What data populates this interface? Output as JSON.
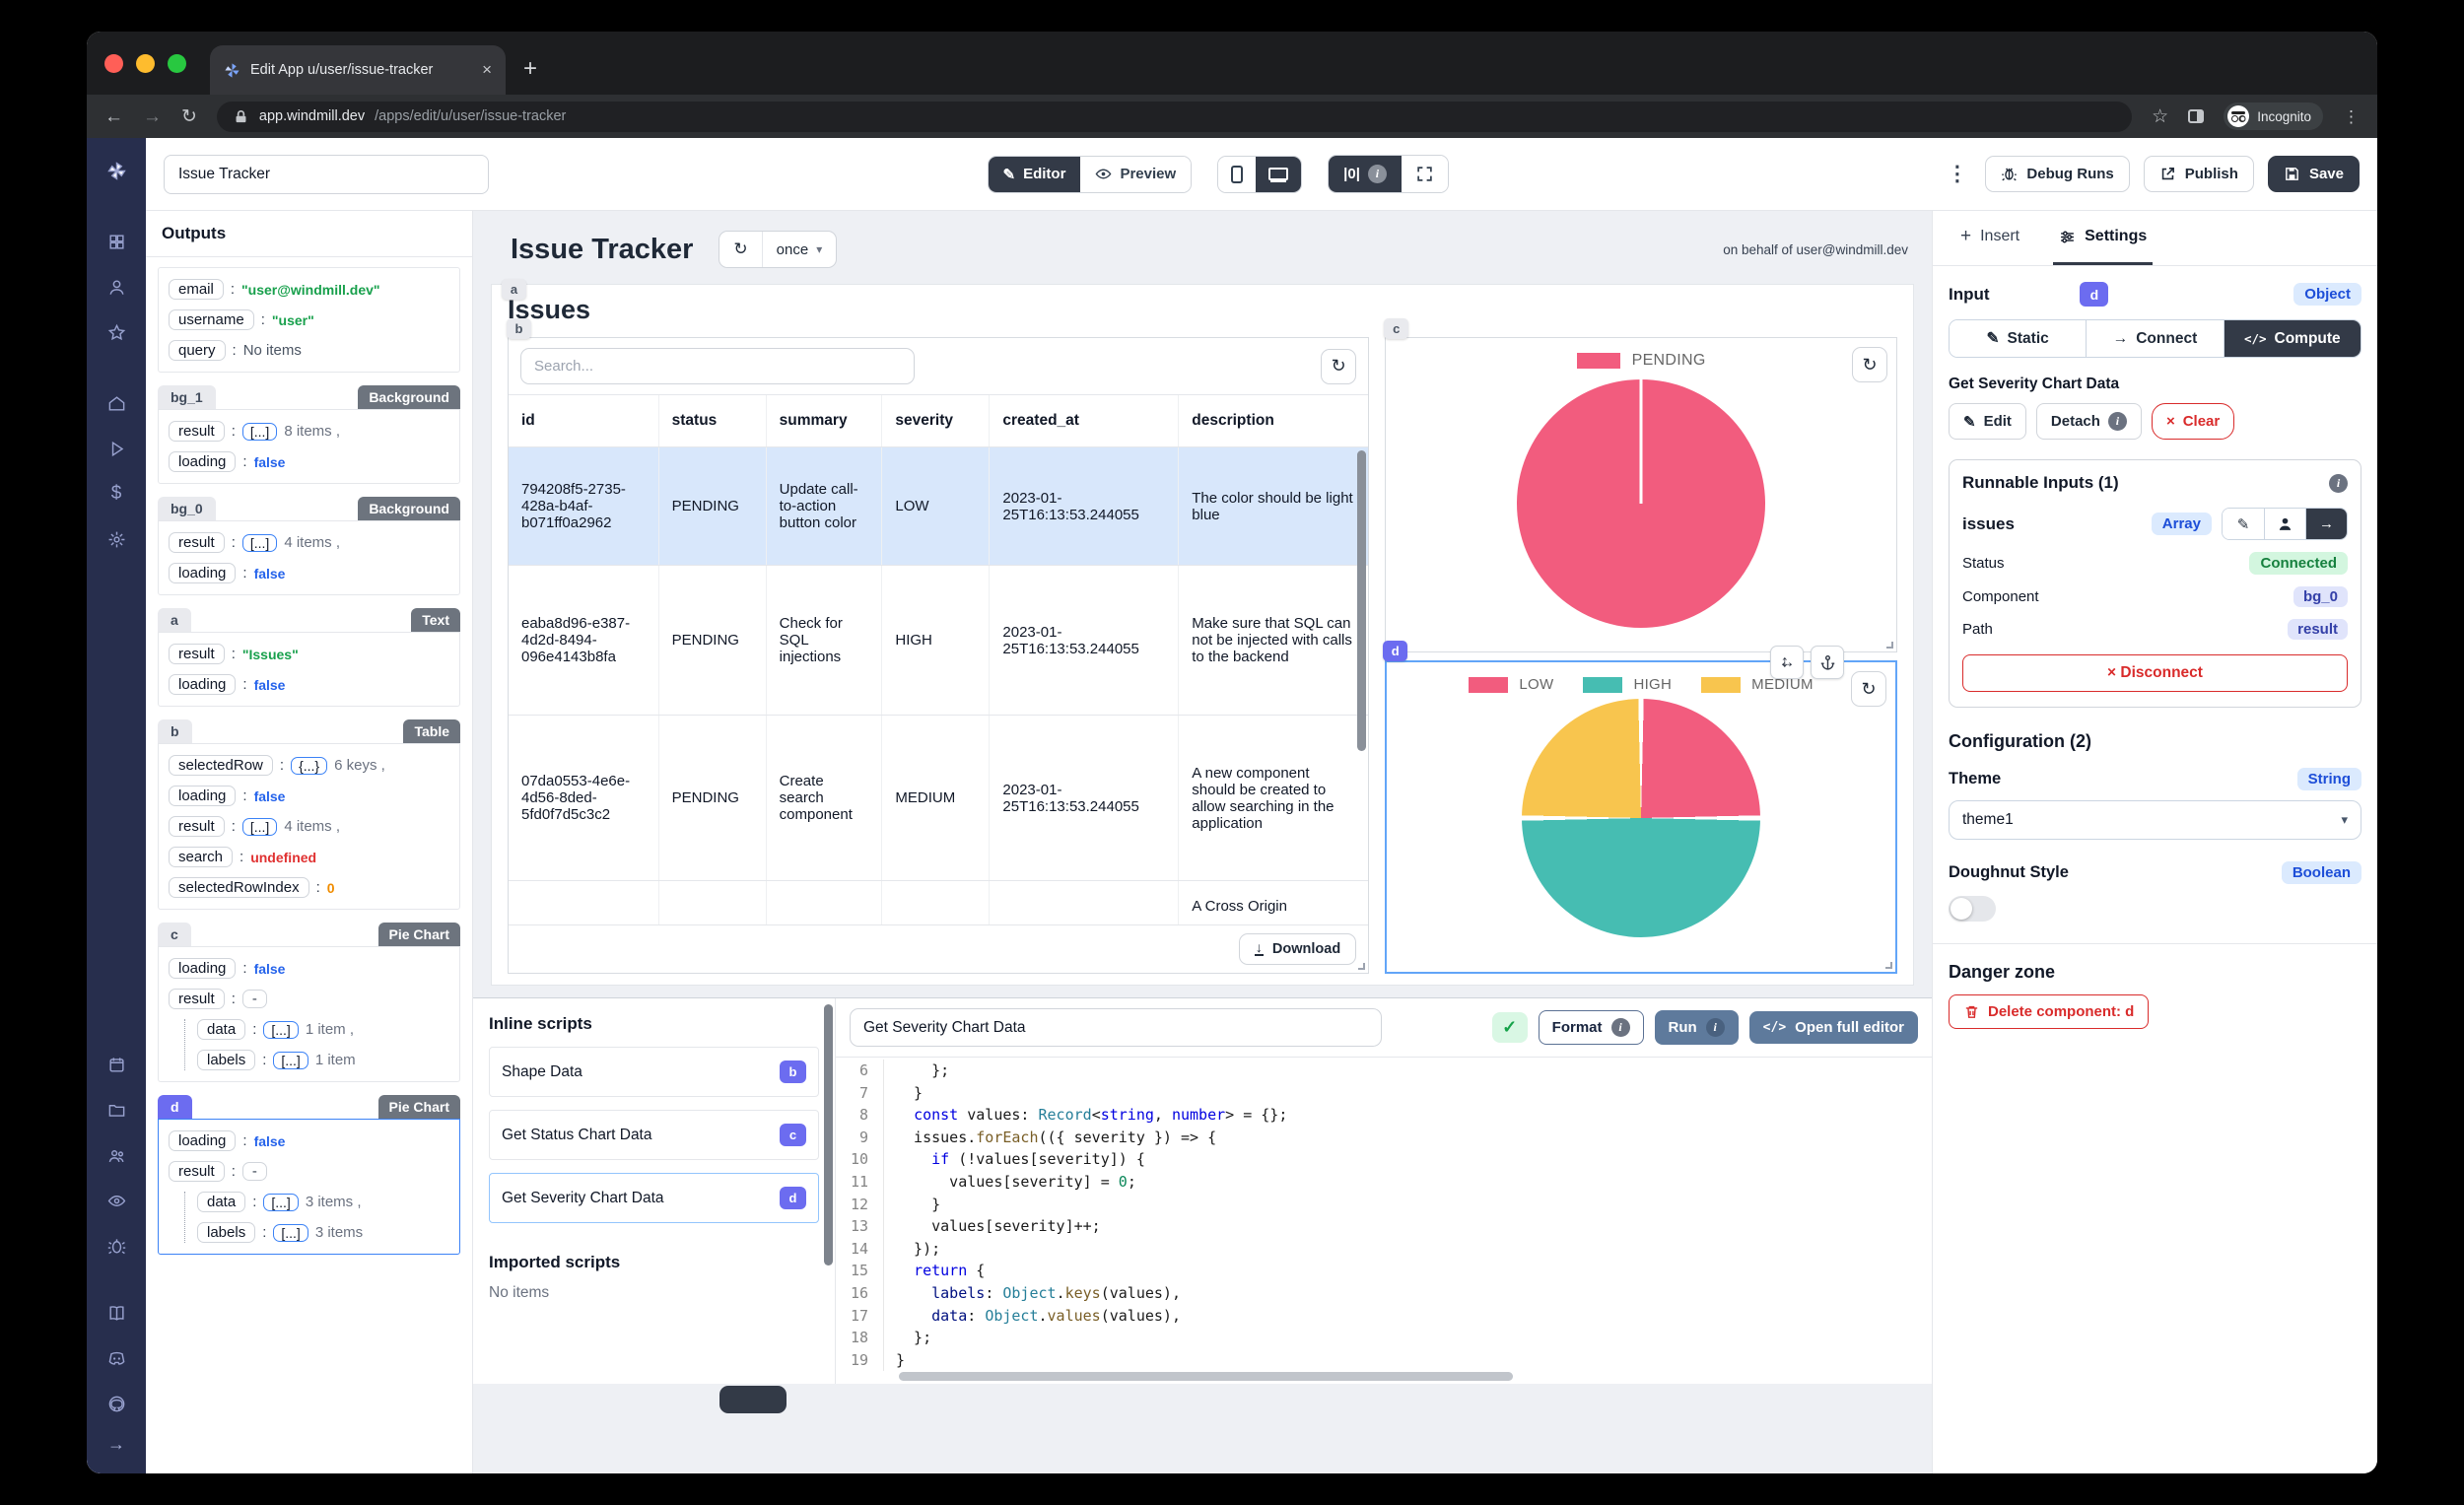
{
  "browser": {
    "tab_title": "Edit App u/user/issue-tracker",
    "url_host": "app.windmill.dev",
    "url_path": "/apps/edit/u/user/issue-tracker",
    "incognito": "Incognito"
  },
  "toolbar": {
    "app_name": "Issue Tracker",
    "editor": "Editor",
    "preview": "Preview",
    "zero": "|0|",
    "debug_runs": "Debug Runs",
    "publish": "Publish",
    "save": "Save"
  },
  "outputs": {
    "title": "Outputs",
    "context": {
      "email_key": "email",
      "email_val": "\"user@windmill.dev\"",
      "username_key": "username",
      "username_val": "\"user\"",
      "query_key": "query",
      "query_val": "No items"
    },
    "bg1": {
      "name": "bg_1",
      "type": "Background",
      "result_key": "result",
      "result_items": "8 items ,",
      "loading_key": "loading",
      "loading_val": "false"
    },
    "bg0": {
      "name": "bg_0",
      "type": "Background",
      "result_key": "result",
      "result_items": "4 items ,",
      "loading_key": "loading",
      "loading_val": "false"
    },
    "a": {
      "name": "a",
      "type": "Text",
      "result_key": "result",
      "result_val": "\"Issues\"",
      "loading_key": "loading",
      "loading_val": "false"
    },
    "b": {
      "name": "b",
      "type": "Table",
      "selectedRow_key": "selectedRow",
      "selectedRow_items": "6 keys ,",
      "loading_key": "loading",
      "loading_val": "false",
      "result_key": "result",
      "result_items": "4 items ,",
      "search_key": "search",
      "search_val": "undefined",
      "sri_key": "selectedRowIndex",
      "sri_val": "0"
    },
    "c": {
      "name": "c",
      "type": "Pie Chart",
      "loading_key": "loading",
      "loading_val": "false",
      "result_key": "result",
      "result_val": "-",
      "data_key": "data",
      "data_items": "1 item ,",
      "labels_key": "labels",
      "labels_items": "1 item"
    },
    "d": {
      "name": "d",
      "type": "Pie Chart",
      "loading_key": "loading",
      "loading_val": "false",
      "result_key": "result",
      "result_val": "-",
      "data_key": "data",
      "data_items": "3 items ,",
      "labels_key": "labels",
      "labels_items": "3 items"
    }
  },
  "canvas": {
    "title": "Issue Tracker",
    "mode": "once",
    "behalf": "on behalf of user@windmill.dev",
    "app_title": "Issues",
    "badge_a": "a",
    "badge_b": "b",
    "badge_c": "c",
    "badge_d": "d"
  },
  "table": {
    "search_placeholder": "Search...",
    "columns": {
      "id": "id",
      "status": "status",
      "summary": "summary",
      "severity": "severity",
      "created_at": "created_at",
      "description": "description"
    },
    "rows": [
      {
        "id": "794208f5-2735-428a-b4af-b071ff0a2962",
        "status": "PENDING",
        "summary": "Update call-to-action button color",
        "severity": "LOW",
        "created_at": "2023-01-25T16:13:53.244055",
        "description": "The color should be light blue"
      },
      {
        "id": "eaba8d96-e387-4d2d-8494-096e4143b8fa",
        "status": "PENDING",
        "summary": "Check for SQL injections",
        "severity": "HIGH",
        "created_at": "2023-01-25T16:13:53.244055",
        "description": "Make sure that SQL can not be injected with calls to the backend"
      },
      {
        "id": "07da0553-4e6e-4d56-8ded-5fd0f7d5c3c2",
        "status": "PENDING",
        "summary": "Create search component",
        "severity": "MEDIUM",
        "created_at": "2023-01-25T16:13:53.244055",
        "description": "A new component should be created to allow searching in the application"
      }
    ],
    "partial_description": "A Cross Origin",
    "download": "Download"
  },
  "chart_data": [
    {
      "type": "pie",
      "title": "Status pie (component c)",
      "labels": [
        "PENDING"
      ],
      "values_pct": [
        100
      ],
      "colors": [
        "#f25c7e"
      ],
      "legend_position": "top"
    },
    {
      "type": "pie",
      "title": "Severity pie (component d)",
      "labels": [
        "LOW",
        "HIGH",
        "MEDIUM"
      ],
      "values_pct": [
        25,
        50,
        25
      ],
      "colors": [
        "#f25c7e",
        "#46bdb2",
        "#f8c54e"
      ],
      "legend_position": "top"
    }
  ],
  "scripts": {
    "title": "Inline scripts",
    "items": [
      {
        "label": "Shape Data",
        "badge": "b"
      },
      {
        "label": "Get Status Chart Data",
        "badge": "c"
      },
      {
        "label": "Get Severity Chart Data",
        "badge": "d"
      }
    ],
    "imported_title": "Imported scripts",
    "imported_empty": "No items"
  },
  "editor": {
    "name": "Get Severity Chart Data",
    "format": "Format",
    "run": "Run",
    "open_full": "Open full editor",
    "code": [
      {
        "n": "6",
        "t": "    };"
      },
      {
        "n": "7",
        "t": "  }"
      },
      {
        "n": "8",
        "t": "  const values: Record<string, number> = {};"
      },
      {
        "n": "9",
        "t": "  issues.forEach(({ severity }) => {"
      },
      {
        "n": "10",
        "t": "    if (!values[severity]) {"
      },
      {
        "n": "11",
        "t": "      values[severity] = 0;"
      },
      {
        "n": "12",
        "t": "    }"
      },
      {
        "n": "13",
        "t": "    values[severity]++;"
      },
      {
        "n": "14",
        "t": "  });"
      },
      {
        "n": "15",
        "t": "  return {"
      },
      {
        "n": "16",
        "t": "    labels: Object.keys(values),"
      },
      {
        "n": "17",
        "t": "    data: Object.values(values),"
      },
      {
        "n": "18",
        "t": "  };"
      },
      {
        "n": "19",
        "t": "}"
      }
    ]
  },
  "panel": {
    "insert": "Insert",
    "settings": "Settings",
    "input_label": "Input",
    "input_badge": "d",
    "input_type": "Object",
    "static": "Static",
    "connect": "Connect",
    "compute": "Compute",
    "script_title": "Get Severity Chart Data",
    "edit": "Edit",
    "detach": "Detach",
    "clear": "Clear",
    "runnable_title": "Runnable Inputs (1)",
    "field": "issues",
    "field_type": "Array",
    "status_label": "Status",
    "status_value": "Connected",
    "component_label": "Component",
    "component_value": "bg_0",
    "path_label": "Path",
    "path_value": "result",
    "disconnect": "Disconnect",
    "config_title": "Configuration (2)",
    "theme_label": "Theme",
    "theme_type": "String",
    "theme_value": "theme1",
    "doughnut_label": "Doughnut Style",
    "doughnut_type": "Boolean",
    "danger_title": "Danger zone",
    "delete_label": "Delete component: d"
  },
  "colors": {
    "accent": "#6c6cf0",
    "dark": "#333a47",
    "danger": "#d92b2b",
    "selected_row": "#d8e7fb"
  }
}
